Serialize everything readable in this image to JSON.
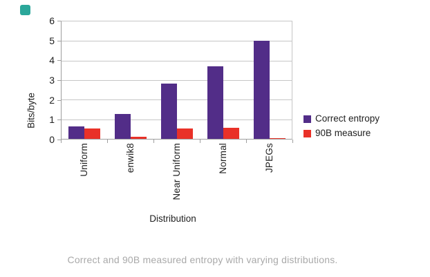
{
  "page": {
    "marker_color": "#2ba79a",
    "caption": "Correct and 90B measured entropy with varying distributions.",
    "caption_color": "#a9a9a9"
  },
  "chart_data": {
    "type": "bar",
    "title": "",
    "xlabel": "Distribution",
    "ylabel": "Bits/byte",
    "ylim": [
      0,
      6
    ],
    "yticks": [
      0,
      1,
      2,
      3,
      4,
      5,
      6
    ],
    "grid": "horizontal",
    "legend_position": "right",
    "categories": [
      "Uniform",
      "enwik8",
      "Near Uniform",
      "Normal",
      "JPEGs"
    ],
    "series": [
      {
        "name": "Correct entropy",
        "color": "#522d88",
        "values": [
          0.63,
          1.25,
          2.78,
          3.65,
          4.95
        ]
      },
      {
        "name": "90B measure",
        "color": "#e93128",
        "values": [
          0.52,
          0.1,
          0.53,
          0.55,
          0.04
        ]
      }
    ]
  }
}
